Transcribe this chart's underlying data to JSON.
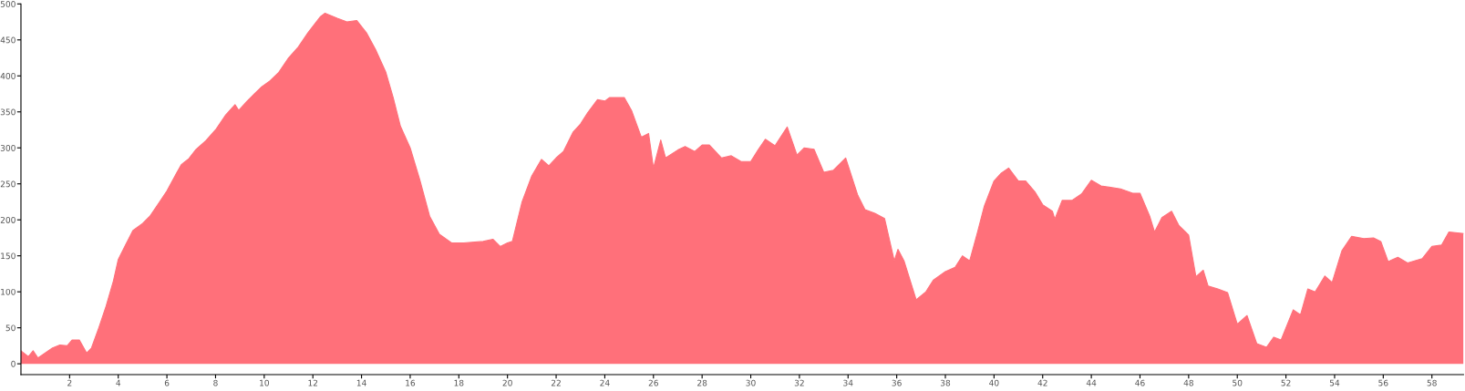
{
  "chart_data": {
    "type": "area",
    "color": "#ff707a",
    "x": [
      0,
      0.3,
      0.5,
      0.7,
      1.0,
      1.3,
      1.6,
      1.9,
      2.1,
      2.4,
      2.7,
      2.9,
      3.2,
      3.5,
      3.8,
      4.0,
      4.3,
      4.6,
      5.0,
      5.3,
      5.7,
      6.0,
      6.4,
      6.6,
      6.9,
      7.2,
      7.6,
      8.0,
      8.4,
      8.8,
      8.95,
      9.3,
      9.6,
      9.9,
      10.2,
      10.6,
      11.0,
      11.4,
      11.8,
      12.3,
      12.5,
      13.0,
      13.4,
      13.8,
      14.2,
      14.6,
      15.0,
      15.3,
      15.6,
      16.0,
      16.4,
      16.8,
      17.2,
      17.7,
      18.2,
      19.0,
      19.4,
      19.7,
      20.0,
      20.2,
      20.6,
      21.0,
      21.4,
      21.7,
      22.0,
      22.3,
      22.7,
      23.0,
      23.3,
      23.7,
      24.0,
      24.2,
      24.8,
      25.1,
      25.5,
      25.8,
      26.0,
      26.3,
      26.5,
      27.0,
      27.3,
      27.7,
      28.0,
      28.3,
      28.8,
      29.2,
      29.6,
      30.0,
      30.3,
      30.6,
      31.0,
      31.5,
      31.9,
      32.2,
      32.6,
      33.0,
      33.4,
      33.9,
      34.4,
      34.7,
      35.1,
      35.5,
      35.9,
      36.05,
      36.3,
      36.8,
      37.2,
      37.5,
      38.0,
      38.4,
      38.7,
      39.0,
      39.3,
      39.6,
      40.0,
      40.3,
      40.6,
      41.0,
      41.3,
      41.7,
      42.0,
      42.4,
      42.5,
      42.8,
      43.2,
      43.6,
      44.0,
      44.4,
      44.8,
      45.2,
      45.7,
      46.0,
      46.4,
      46.6,
      46.9,
      47.3,
      47.6,
      48.0,
      48.3,
      48.6,
      48.8,
      49.2,
      49.6,
      50.0,
      50.4,
      50.8,
      51.2,
      51.5,
      51.8,
      52.3,
      52.6,
      52.9,
      53.2,
      53.6,
      53.9,
      54.3,
      54.7,
      55.2,
      55.6,
      55.9,
      56.2,
      56.6,
      57.0,
      57.6,
      58.0,
      58.4,
      58.7,
      59.3
    ],
    "values": [
      18,
      10,
      18,
      8,
      15,
      22,
      26,
      25,
      33,
      33,
      15,
      22,
      50,
      80,
      115,
      145,
      165,
      185,
      195,
      205,
      225,
      240,
      265,
      277,
      285,
      298,
      310,
      325,
      345,
      360,
      352,
      365,
      375,
      385,
      392,
      405,
      425,
      440,
      460,
      482,
      487,
      480,
      475,
      477,
      460,
      435,
      405,
      370,
      330,
      300,
      255,
      205,
      180,
      168,
      168,
      170,
      173,
      163,
      168,
      170,
      225,
      261,
      284,
      275,
      286,
      295,
      322,
      333,
      349,
      367,
      365,
      370,
      370,
      352,
      315,
      320,
      272,
      311,
      286,
      297,
      302,
      295,
      304,
      304,
      286,
      289,
      281,
      281,
      297,
      312,
      303,
      329,
      290,
      300,
      298,
      266,
      269,
      286,
      234,
      214,
      209,
      202,
      143,
      159,
      143,
      89,
      100,
      116,
      128,
      134,
      150,
      143,
      180,
      219,
      254,
      265,
      272,
      254,
      254,
      238,
      221,
      212,
      201,
      227,
      227,
      236,
      255,
      247,
      245,
      243,
      237,
      237,
      205,
      183,
      203,
      212,
      192,
      179,
      121,
      130,
      108,
      104,
      99,
      55,
      67,
      28,
      23,
      37,
      33,
      75,
      68,
      104,
      100,
      122,
      113,
      157,
      177,
      174,
      175,
      170,
      142,
      148,
      140,
      146,
      163,
      165,
      183,
      181
    ],
    "xlim": [
      0,
      59.3
    ],
    "ylim": [
      -15,
      500
    ],
    "xticks": [
      2,
      4,
      6,
      8,
      10,
      12,
      14,
      16,
      18,
      20,
      22,
      24,
      26,
      28,
      30,
      32,
      34,
      36,
      38,
      40,
      42,
      44,
      46,
      48,
      50,
      52,
      54,
      56,
      58
    ],
    "yticks": [
      0,
      50,
      100,
      150,
      200,
      250,
      300,
      350,
      400,
      450,
      500
    ],
    "grid": false
  }
}
